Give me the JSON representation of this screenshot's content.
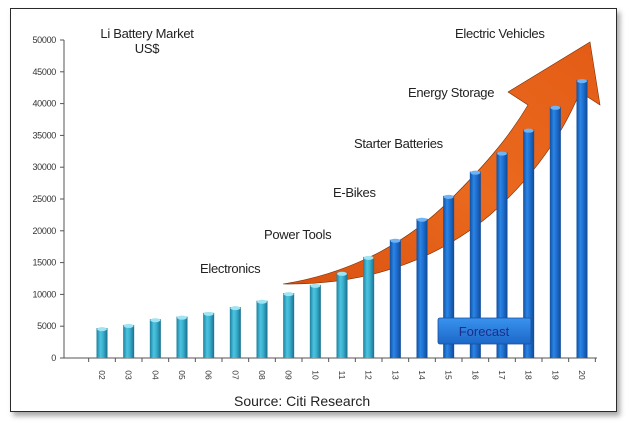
{
  "chart_data": {
    "type": "bar",
    "title": "Li Battery Market",
    "subtitle": "US$",
    "xlabel": "",
    "ylabel": "",
    "source": "Source: Citi Research",
    "ylim": [
      0,
      50000
    ],
    "yticks": [
      0,
      5000,
      10000,
      15000,
      20000,
      25000,
      30000,
      35000,
      40000,
      45000,
      50000
    ],
    "grid": false,
    "categories": [
      "02",
      "03",
      "04",
      "05",
      "06",
      "07",
      "08",
      "09",
      "10",
      "11",
      "12",
      "13",
      "14",
      "15",
      "16",
      "17",
      "18",
      "19",
      "20"
    ],
    "series": [
      {
        "name": "Li Battery Market (US$)",
        "values": [
          4700,
          5200,
          6100,
          6500,
          7100,
          8000,
          9000,
          10200,
          11500,
          13400,
          15900,
          18600,
          21900,
          25500,
          29300,
          32300,
          35900,
          39500,
          43700
        ],
        "forecast_from_index": 11
      }
    ],
    "colors": {
      "historical_bar": "#3ab0cf",
      "forecast_bar": "#1f6fd0",
      "arrow": "#e8621a",
      "forecast_label_bg": "#2a7fe0"
    },
    "annotations": [
      {
        "text": "Electronics"
      },
      {
        "text": "Power Tools"
      },
      {
        "text": "E-Bikes"
      },
      {
        "text": "Starter Batteries"
      },
      {
        "text": "Energy Storage"
      },
      {
        "text": "Electric Vehicles"
      }
    ],
    "forecast_label": "Forecast"
  }
}
